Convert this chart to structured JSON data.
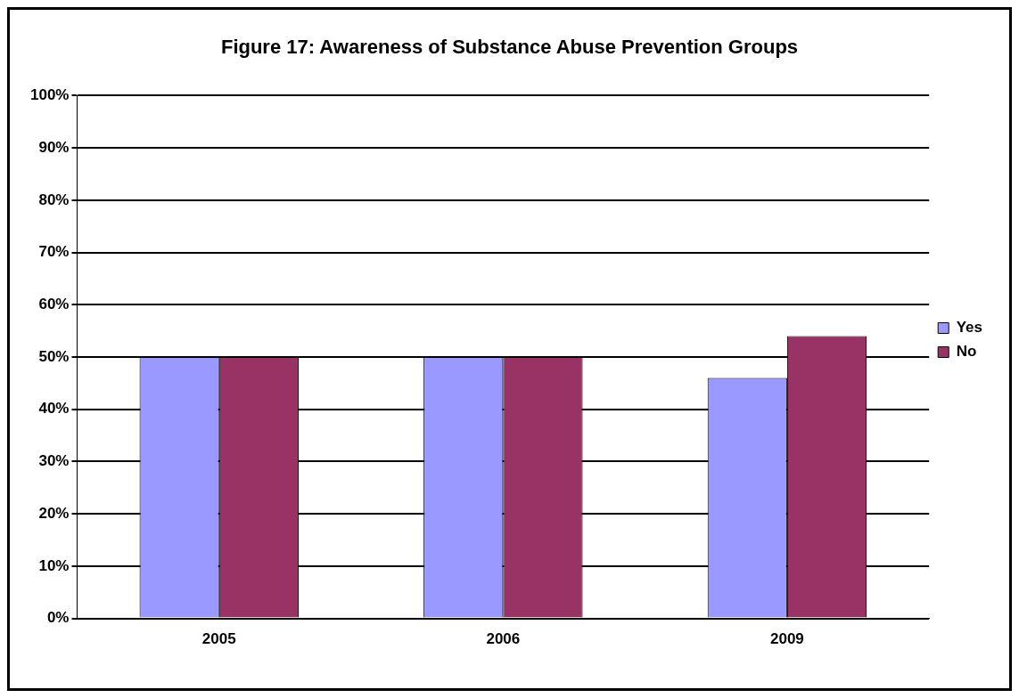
{
  "chart_data": {
    "type": "bar",
    "title": "Figure 17: Awareness of Substance Abuse Prevention Groups",
    "categories": [
      "2005",
      "2006",
      "2009"
    ],
    "series": [
      {
        "name": "Yes",
        "color": "#9999ff",
        "values": [
          50,
          50,
          46
        ]
      },
      {
        "name": "No",
        "color": "#993366",
        "values": [
          50,
          50,
          54
        ]
      }
    ],
    "ylim": [
      0,
      100
    ],
    "yticks": [
      {
        "value": 0,
        "label": "0%"
      },
      {
        "value": 10,
        "label": "10%"
      },
      {
        "value": 20,
        "label": "20%"
      },
      {
        "value": 30,
        "label": "30%"
      },
      {
        "value": 40,
        "label": "40%"
      },
      {
        "value": 50,
        "label": "50%"
      },
      {
        "value": 60,
        "label": "60%"
      },
      {
        "value": 70,
        "label": "70%"
      },
      {
        "value": 80,
        "label": "80%"
      },
      {
        "value": 90,
        "label": "90%"
      },
      {
        "value": 100,
        "label": "100%"
      }
    ],
    "grid": "y",
    "legend": "right"
  }
}
